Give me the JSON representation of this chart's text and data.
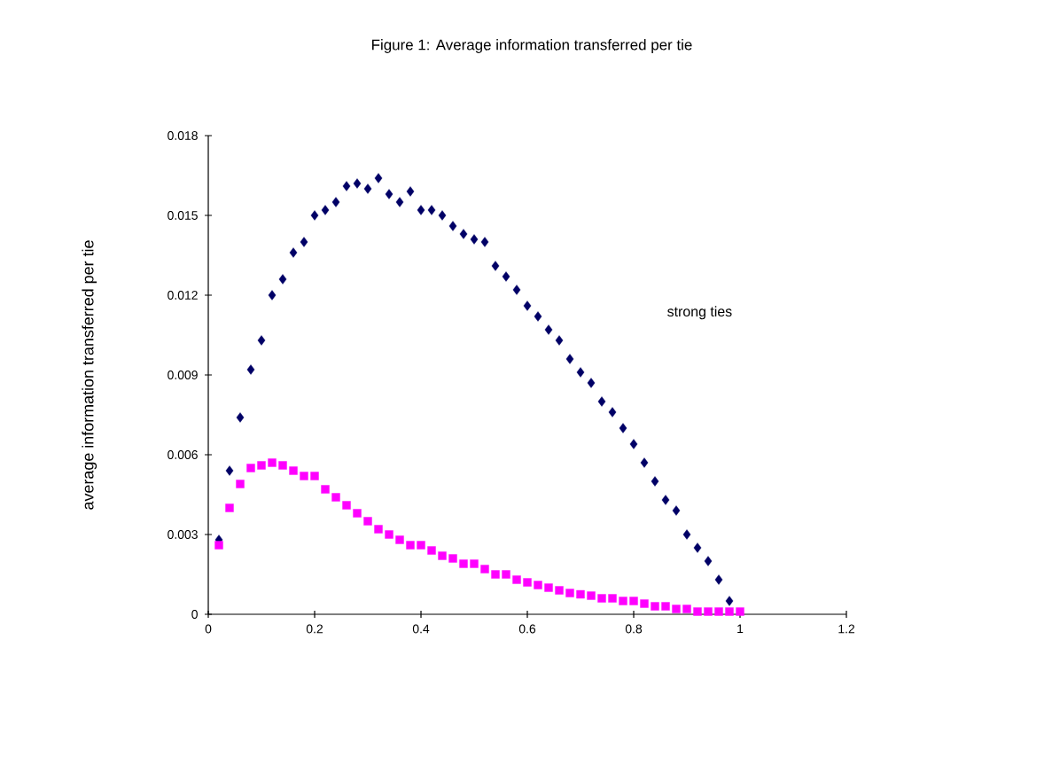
{
  "chart_data": {
    "type": "scatter",
    "title": "Figure 1:  Average information transferred per tie",
    "ylabel": "average information transferred per tie",
    "x": [
      0.02,
      0.04,
      0.06,
      0.08,
      0.1,
      0.12,
      0.14,
      0.16,
      0.18,
      0.2,
      0.22,
      0.24,
      0.26,
      0.28,
      0.3,
      0.32,
      0.34,
      0.36,
      0.38,
      0.4,
      0.42,
      0.44,
      0.46,
      0.48,
      0.5,
      0.52,
      0.54,
      0.56,
      0.58,
      0.6,
      0.62,
      0.64,
      0.66,
      0.68,
      0.7,
      0.72,
      0.74,
      0.76,
      0.78,
      0.8,
      0.82,
      0.84,
      0.86,
      0.88,
      0.9,
      0.92,
      0.94,
      0.96,
      0.98,
      1.0
    ],
    "series": [
      {
        "color": "#000066",
        "marker": "diamond",
        "values": [
          0.0028,
          0.0054,
          0.0074,
          0.0092,
          0.0103,
          0.012,
          0.0126,
          0.0136,
          0.014,
          0.015,
          0.0152,
          0.0155,
          0.0161,
          0.0162,
          0.016,
          0.0164,
          0.0158,
          0.0155,
          0.0159,
          0.0152,
          0.0152,
          0.015,
          0.0146,
          0.0143,
          0.0141,
          0.014,
          0.0131,
          0.0127,
          0.0122,
          0.0116,
          0.0112,
          0.0107,
          0.0103,
          0.0096,
          0.0091,
          0.0087,
          0.008,
          0.0076,
          0.007,
          0.0064,
          0.0057,
          0.005,
          0.0043,
          0.0039,
          0.003,
          0.0025,
          0.002,
          0.0013,
          0.0005,
          null
        ]
      },
      {
        "color": "#ff00ff",
        "marker": "square",
        "values": [
          0.0026,
          0.004,
          0.0049,
          0.0055,
          0.0056,
          0.0057,
          0.0056,
          0.0054,
          0.0052,
          0.0052,
          0.0047,
          0.0044,
          0.0041,
          0.0038,
          0.0035,
          0.0032,
          0.003,
          0.0028,
          0.0026,
          0.0026,
          0.0024,
          0.0022,
          0.0021,
          0.0019,
          0.0019,
          0.0017,
          0.0015,
          0.0015,
          0.0013,
          0.0012,
          0.0011,
          0.001,
          0.0009,
          0.0008,
          0.00075,
          0.0007,
          0.0006,
          0.0006,
          0.0005,
          0.0005,
          0.0004,
          0.0003,
          0.0003,
          0.0002,
          0.0002,
          0.0001,
          0.0001,
          0.0001,
          0.0001,
          0.0001
        ]
      }
    ],
    "annotations": [
      "strong ties"
    ],
    "xlim": [
      0,
      1.2
    ],
    "ylim": [
      0,
      0.018
    ],
    "xticks": [
      0,
      0.2,
      0.4,
      0.6,
      0.8,
      1,
      1.2
    ],
    "yticks": [
      0,
      0.003,
      0.006,
      0.009,
      0.012,
      0.015,
      0.018
    ],
    "grid": false
  }
}
